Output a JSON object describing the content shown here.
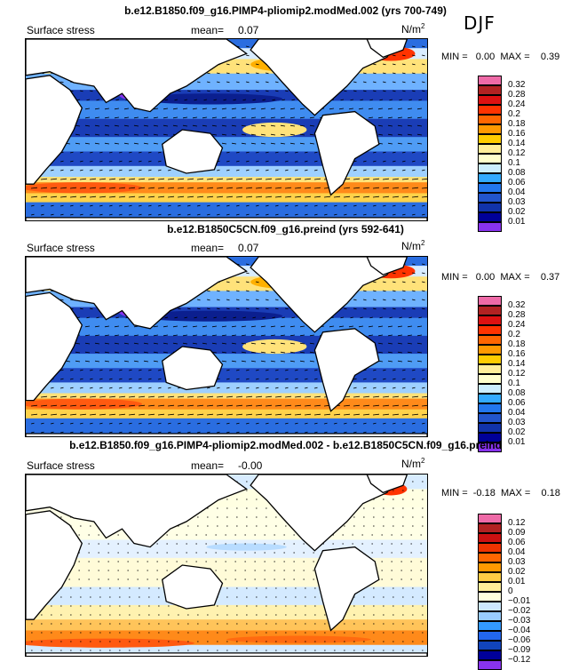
{
  "season": "DJF",
  "panels": [
    {
      "title": "b.e12.B1850.f09_g16.PIMP4-pliomip2.modMed.002 (yrs 700-749)",
      "variable": "Surface stress",
      "mean_label": "mean=",
      "mean_value": "0.07",
      "units": "N/m",
      "units_exp": "2",
      "minmax": "MIN =   0.00  MAX =    0.39",
      "type": "absolute"
    },
    {
      "title": "b.e12.B1850C5CN.f09_g16.preind (yrs 592-641)",
      "variable": "Surface stress",
      "mean_label": "mean=",
      "mean_value": "0.07",
      "units": "N/m",
      "units_exp": "2",
      "minmax": "MIN =   0.00  MAX =    0.37",
      "type": "absolute"
    },
    {
      "title": "b.e12.B1850.f09_g16.PIMP4-pliomip2.modMed.002 - b.e12.B1850C5CN.f09_g16.preind",
      "variable": "Surface stress",
      "mean_label": "mean=",
      "mean_value": "-0.00",
      "units": "N/m",
      "units_exp": "2",
      "minmax": "MIN =  -0.18  MAX =    0.18",
      "type": "difference"
    }
  ],
  "colorbars": {
    "absolute": {
      "labels": [
        "0.32",
        "0.28",
        "0.24",
        "0.2",
        "0.18",
        "0.16",
        "0.14",
        "0.12",
        "0.1",
        "0.08",
        "0.06",
        "0.04",
        "0.03",
        "0.02",
        "0.01"
      ],
      "colors": [
        "#ee6aa7",
        "#b22222",
        "#dd1111",
        "#ff3300",
        "#ff6600",
        "#ff9900",
        "#ffcc00",
        "#ffee99",
        "#ffffcc",
        "#cceeff",
        "#33aaff",
        "#2277ee",
        "#2255cc",
        "#1133aa",
        "#000099",
        "#8833ee"
      ]
    },
    "difference": {
      "labels": [
        "0.12",
        "0.09",
        "0.06",
        "0.04",
        "0.03",
        "0.02",
        "0.01",
        "0",
        "−0.01",
        "−0.02",
        "−0.03",
        "−0.04",
        "−0.06",
        "−0.09",
        "−0.12"
      ],
      "colors": [
        "#ee6aa7",
        "#b22222",
        "#cc1111",
        "#ee3300",
        "#ff6600",
        "#ff9900",
        "#ffcc44",
        "#ffee99",
        "#ffffdd",
        "#cce8ff",
        "#99ccff",
        "#3399ff",
        "#2266ee",
        "#1144bb",
        "#000099",
        "#8833ee"
      ]
    }
  },
  "chart_data": [
    {
      "type": "heatmap",
      "title": "b.e12.B1850.f09_g16.PIMP4-pliomip2.modMed.002 (yrs 700-749)",
      "variable": "Surface stress",
      "units": "N/m2",
      "mean": 0.07,
      "min": 0.0,
      "max": 0.39,
      "levels": [
        0.01,
        0.02,
        0.03,
        0.04,
        0.06,
        0.08,
        0.1,
        0.12,
        0.14,
        0.16,
        0.18,
        0.2,
        0.24,
        0.28,
        0.32
      ]
    },
    {
      "type": "heatmap",
      "title": "b.e12.B1850C5CN.f09_g16.preind (yrs 592-641)",
      "variable": "Surface stress",
      "units": "N/m2",
      "mean": 0.07,
      "min": 0.0,
      "max": 0.37,
      "levels": [
        0.01,
        0.02,
        0.03,
        0.04,
        0.06,
        0.08,
        0.1,
        0.12,
        0.14,
        0.16,
        0.18,
        0.2,
        0.24,
        0.28,
        0.32
      ]
    },
    {
      "type": "heatmap",
      "title": "b.e12.B1850.f09_g16.PIMP4-pliomip2.modMed.002 - b.e12.B1850C5CN.f09_g16.preind",
      "variable": "Surface stress",
      "units": "N/m2",
      "mean": -0.0,
      "min": -0.18,
      "max": 0.18,
      "levels": [
        -0.12,
        -0.09,
        -0.06,
        -0.04,
        -0.03,
        -0.02,
        -0.01,
        0,
        0.01,
        0.02,
        0.03,
        0.04,
        0.06,
        0.09,
        0.12
      ]
    }
  ]
}
